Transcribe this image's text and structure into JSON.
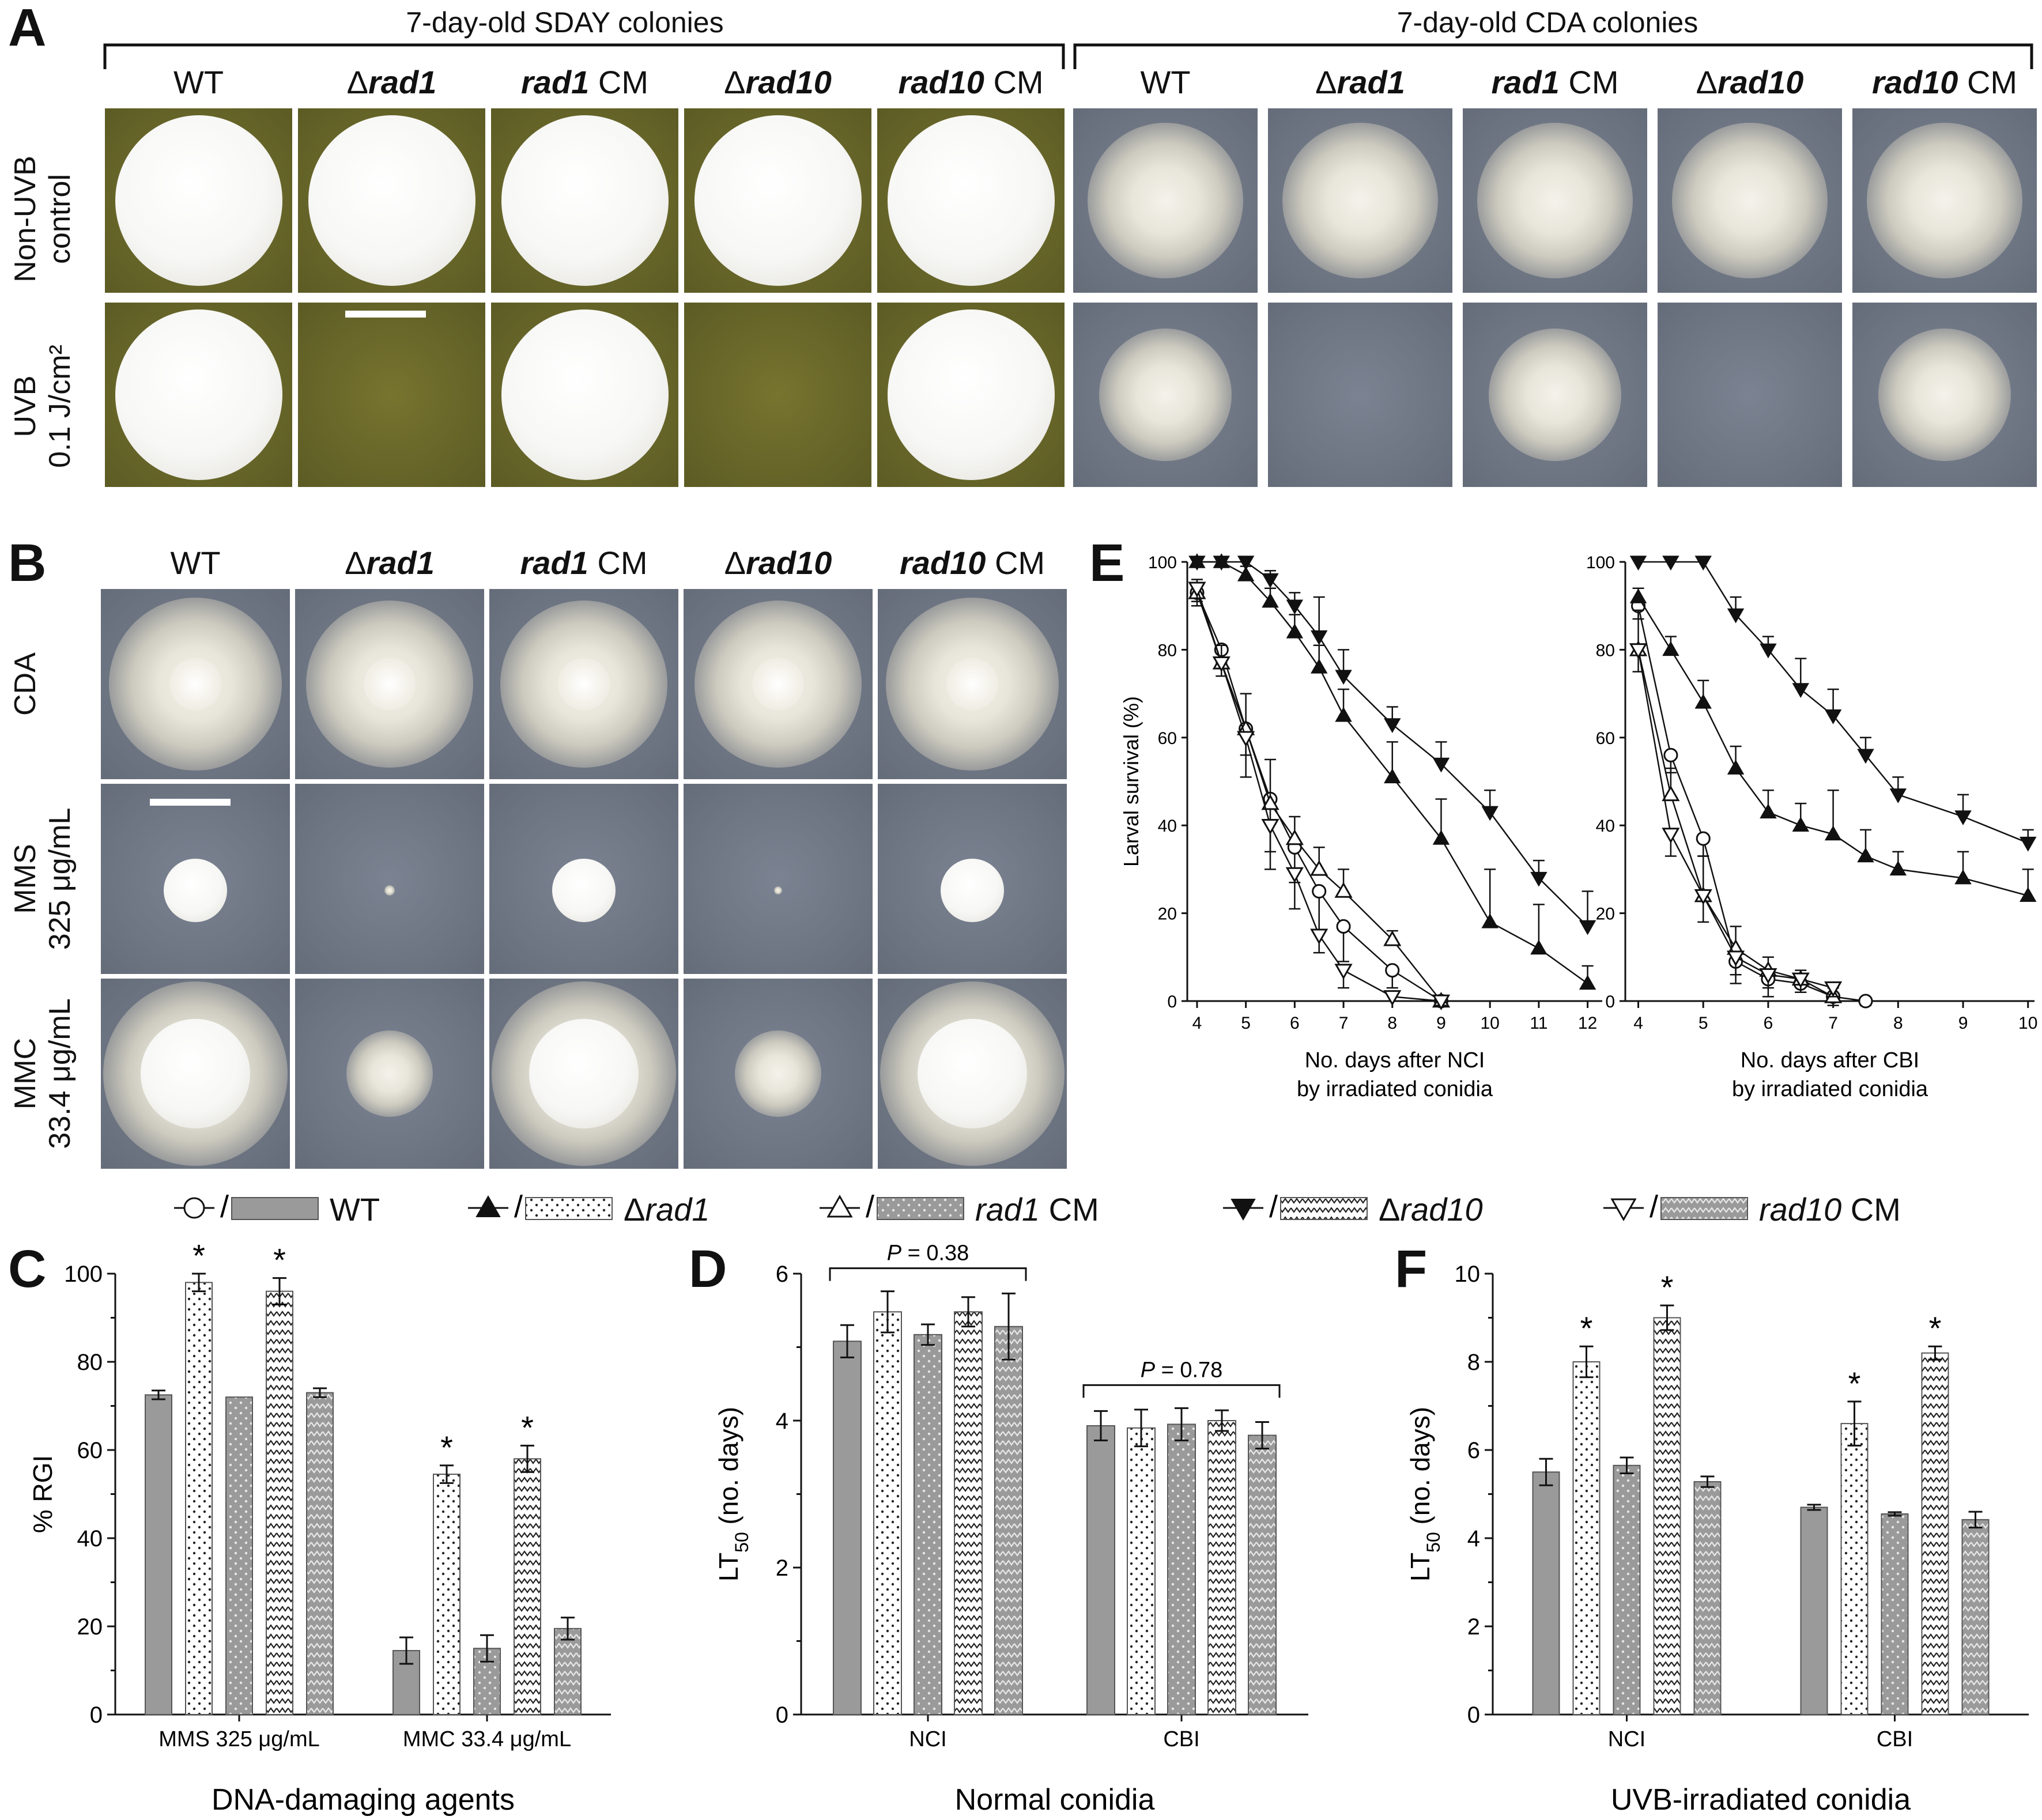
{
  "panel_letters": {
    "A": "A",
    "B": "B",
    "C": "C",
    "D": "D",
    "E": "E",
    "F": "F"
  },
  "panelA": {
    "header_sday": "7-day-old SDAY colonies",
    "header_cda": "7-day-old CDA colonies",
    "strains": [
      {
        "pre": "",
        "it": "",
        "post": "WT"
      },
      {
        "pre": "Δ",
        "it": "rad1",
        "post": ""
      },
      {
        "pre": "",
        "it": "rad1",
        "post": " CM"
      },
      {
        "pre": "Δ",
        "it": "rad10",
        "post": ""
      },
      {
        "pre": "",
        "it": "rad10",
        "post": " CM"
      }
    ],
    "row1_label_line1": "Non-UVB",
    "row1_label_line2": "control",
    "row2_label_line1": "UVB",
    "row2_label_line2": "0.1 J/cm²"
  },
  "panelB": {
    "row_labels": [
      {
        "l1": "CDA",
        "l2": ""
      },
      {
        "l1": "MMS",
        "l2": "325 μg/mL"
      },
      {
        "l1": "MMC",
        "l2": "33.4 μg/mL"
      }
    ]
  },
  "legend": [
    {
      "label_pre": "",
      "label_it": "",
      "label_post": "WT",
      "marker": "circle-open",
      "fill": "gray"
    },
    {
      "label_pre": "Δ",
      "label_it": "rad1",
      "label_post": "",
      "marker": "triangle-up-filled",
      "fill": "dots"
    },
    {
      "label_pre": "",
      "label_it": "rad1",
      "label_post": " CM",
      "marker": "triangle-up-open",
      "fill": "gray-dots"
    },
    {
      "label_pre": "Δ",
      "label_it": "rad10",
      "label_post": "",
      "marker": "triangle-down-filled",
      "fill": "zigzag"
    },
    {
      "label_pre": "",
      "label_it": "rad10",
      "label_post": " CM",
      "marker": "triangle-down-open",
      "fill": "gray-zigzag"
    }
  ],
  "colors": {
    "gray": "#9a9a9a",
    "black": "#111111"
  },
  "chart_data": [
    {
      "id": "C",
      "type": "bar",
      "ylabel": "% RGI",
      "xlabel": "DNA-damaging agents",
      "ylim": [
        0,
        100
      ],
      "yticks": [
        0,
        20,
        40,
        60,
        80,
        100
      ],
      "categories": [
        "MMS 325 μg/mL",
        "MMC 33.4 μg/mL"
      ],
      "series": [
        {
          "name": "WT",
          "values": [
            72.5,
            14.5
          ],
          "err": [
            1,
            3
          ]
        },
        {
          "name": "Δrad1",
          "values": [
            98,
            54.5
          ],
          "err": [
            2,
            2
          ],
          "sig": [
            true,
            true
          ]
        },
        {
          "name": "rad1 CM",
          "values": [
            72,
            15
          ],
          "err": [
            0,
            3
          ]
        },
        {
          "name": "Δrad10",
          "values": [
            96,
            58
          ],
          "err": [
            3,
            3
          ],
          "sig": [
            true,
            true
          ]
        },
        {
          "name": "rad10 CM",
          "values": [
            73,
            19.5
          ],
          "err": [
            1,
            2.5
          ]
        }
      ]
    },
    {
      "id": "D",
      "type": "bar",
      "ylabel": "LT50 (no. days)",
      "xlabel": "Normal conidia",
      "ylim": [
        0,
        6
      ],
      "yticks": [
        0,
        2,
        4,
        6
      ],
      "categories": [
        "NCI",
        "CBI"
      ],
      "annotations": [
        "P = 0.38",
        "P = 0.78"
      ],
      "series": [
        {
          "name": "WT",
          "values": [
            5.08,
            3.93
          ],
          "err": [
            0.22,
            0.2
          ]
        },
        {
          "name": "Δrad1",
          "values": [
            5.48,
            3.9
          ],
          "err": [
            0.28,
            0.25
          ]
        },
        {
          "name": "rad1 CM",
          "values": [
            5.17,
            3.95
          ],
          "err": [
            0.14,
            0.22
          ]
        },
        {
          "name": "Δrad10",
          "values": [
            5.48,
            4.0
          ],
          "err": [
            0.2,
            0.14
          ]
        },
        {
          "name": "rad10 CM",
          "values": [
            5.28,
            3.8
          ],
          "err": [
            0.45,
            0.18
          ]
        }
      ]
    },
    {
      "id": "F",
      "type": "bar",
      "ylabel": "LT50 (no. days)",
      "xlabel": "UVB-irradiated conidia",
      "ylim": [
        0,
        10
      ],
      "yticks": [
        0,
        2,
        4,
        6,
        8,
        10
      ],
      "categories": [
        "NCI",
        "CBI"
      ],
      "series": [
        {
          "name": "WT",
          "values": [
            5.5,
            4.7
          ],
          "err": [
            0.3,
            0.06
          ]
        },
        {
          "name": "Δrad1",
          "values": [
            8.0,
            6.6
          ],
          "err": [
            0.35,
            0.5
          ],
          "sig": [
            true,
            true
          ]
        },
        {
          "name": "rad1 CM",
          "values": [
            5.65,
            4.55
          ],
          "err": [
            0.18,
            0.04
          ]
        },
        {
          "name": "Δrad10",
          "values": [
            9.0,
            8.2
          ],
          "err": [
            0.28,
            0.15
          ],
          "sig": [
            true,
            true
          ]
        },
        {
          "name": "rad10 CM",
          "values": [
            5.28,
            4.42
          ],
          "err": [
            0.12,
            0.18
          ]
        }
      ]
    },
    {
      "id": "E1",
      "type": "line",
      "ylabel": "Larval survival (%)",
      "xlabel_line1": "No. days after NCI",
      "xlabel_line2": "by irradiated conidia",
      "xlim": [
        3.8,
        12.3
      ],
      "ylim": [
        0,
        100
      ],
      "xticks": [
        4,
        5,
        6,
        7,
        8,
        9,
        10,
        11,
        12
      ],
      "yticks": [
        0,
        20,
        40,
        60,
        80,
        100
      ],
      "series": [
        {
          "name": "WT",
          "marker": "circle-open",
          "x": [
            4,
            4.5,
            5,
            5.5,
            6,
            6.5,
            7,
            8,
            9
          ],
          "y": [
            93,
            80,
            62,
            46,
            35,
            25,
            17,
            7,
            0
          ],
          "err": [
            3,
            3,
            6,
            12,
            8,
            9,
            8,
            4,
            1
          ]
        },
        {
          "name": "Δrad1",
          "marker": "triangle-up-filled",
          "x": [
            4,
            4.5,
            5,
            5.5,
            6,
            6.5,
            7,
            8,
            9,
            10,
            11,
            12
          ],
          "y": [
            100,
            100,
            97,
            91,
            84,
            76,
            65,
            51,
            37,
            18,
            12,
            4
          ],
          "err": [
            1,
            1,
            2,
            3,
            4,
            5,
            6,
            8,
            9,
            12,
            10,
            4
          ]
        },
        {
          "name": "rad1 CM",
          "marker": "triangle-up-open",
          "x": [
            4,
            4.5,
            5,
            5.5,
            6,
            6.5,
            7,
            8,
            9
          ],
          "y": [
            93,
            77,
            62,
            45,
            37,
            30,
            25,
            14,
            0
          ],
          "err": [
            3,
            4,
            8,
            10,
            5,
            5,
            5,
            2,
            1
          ]
        },
        {
          "name": "Δrad10",
          "marker": "triangle-down-filled",
          "x": [
            4,
            4.5,
            5,
            5.5,
            6,
            6.5,
            7,
            8,
            9,
            10,
            11,
            12
          ],
          "y": [
            100,
            100,
            100,
            96,
            90,
            83,
            74,
            63,
            54,
            43,
            28,
            17
          ],
          "err": [
            0,
            0,
            1,
            2,
            3,
            9,
            6,
            4,
            5,
            5,
            4,
            8
          ]
        },
        {
          "name": "rad10 CM",
          "marker": "triangle-down-open",
          "x": [
            4,
            4.5,
            5,
            5.5,
            6,
            6.5,
            7,
            8,
            9
          ],
          "y": [
            94,
            77,
            60,
            40,
            29,
            15,
            7,
            1,
            0
          ],
          "err": [
            3,
            3,
            9,
            10,
            8,
            4,
            4,
            1,
            1
          ]
        }
      ]
    },
    {
      "id": "E2",
      "type": "line",
      "ylabel": "",
      "xlabel_line1": "No. days after CBI",
      "xlabel_line2": "by irradiated conidia",
      "xlim": [
        3.8,
        10.1
      ],
      "ylim": [
        0,
        100
      ],
      "xticks": [
        4,
        5,
        6,
        7,
        8,
        9,
        10
      ],
      "yticks": [
        0,
        20,
        40,
        60,
        80,
        100
      ],
      "series": [
        {
          "name": "WT",
          "marker": "circle-open",
          "x": [
            4,
            4.5,
            5,
            5.5,
            6,
            6.5,
            7,
            7.5
          ],
          "y": [
            90,
            56,
            37,
            9,
            5,
            4,
            1,
            0
          ],
          "err": [
            3,
            4,
            4,
            5,
            4,
            2,
            2,
            1
          ]
        },
        {
          "name": "Δrad1",
          "marker": "triangle-up-filled",
          "x": [
            4,
            4.5,
            5,
            5.5,
            6,
            6.5,
            7,
            7.5,
            8,
            9,
            10
          ],
          "y": [
            92,
            80,
            68,
            53,
            43,
            40,
            38,
            33,
            30,
            28,
            24
          ],
          "err": [
            2,
            3,
            5,
            5,
            5,
            5,
            10,
            6,
            4,
            6,
            6
          ]
        },
        {
          "name": "rad1 CM",
          "marker": "triangle-up-open",
          "x": [
            4,
            4.5,
            5,
            5.5,
            6,
            6.5,
            7
          ],
          "y": [
            80,
            47,
            24,
            12,
            7,
            5,
            1
          ],
          "err": [
            9,
            6,
            9,
            5,
            3,
            2,
            2
          ]
        },
        {
          "name": "Δrad10",
          "marker": "triangle-down-filled",
          "x": [
            4,
            4.5,
            5,
            5.5,
            6,
            6.5,
            7,
            7.5,
            8,
            9,
            10
          ],
          "y": [
            100,
            100,
            100,
            88,
            80,
            71,
            65,
            56,
            47,
            42,
            36
          ],
          "err": [
            0,
            0,
            0,
            4,
            3,
            7,
            6,
            4,
            4,
            5,
            3
          ]
        },
        {
          "name": "rad10 CM",
          "marker": "triangle-down-open",
          "x": [
            4,
            4.5,
            5,
            5.5,
            6,
            6.5,
            7
          ],
          "y": [
            80,
            38,
            24,
            10,
            6,
            5,
            3
          ],
          "err": [
            5,
            5,
            6,
            4,
            3,
            3,
            2
          ]
        }
      ]
    }
  ]
}
